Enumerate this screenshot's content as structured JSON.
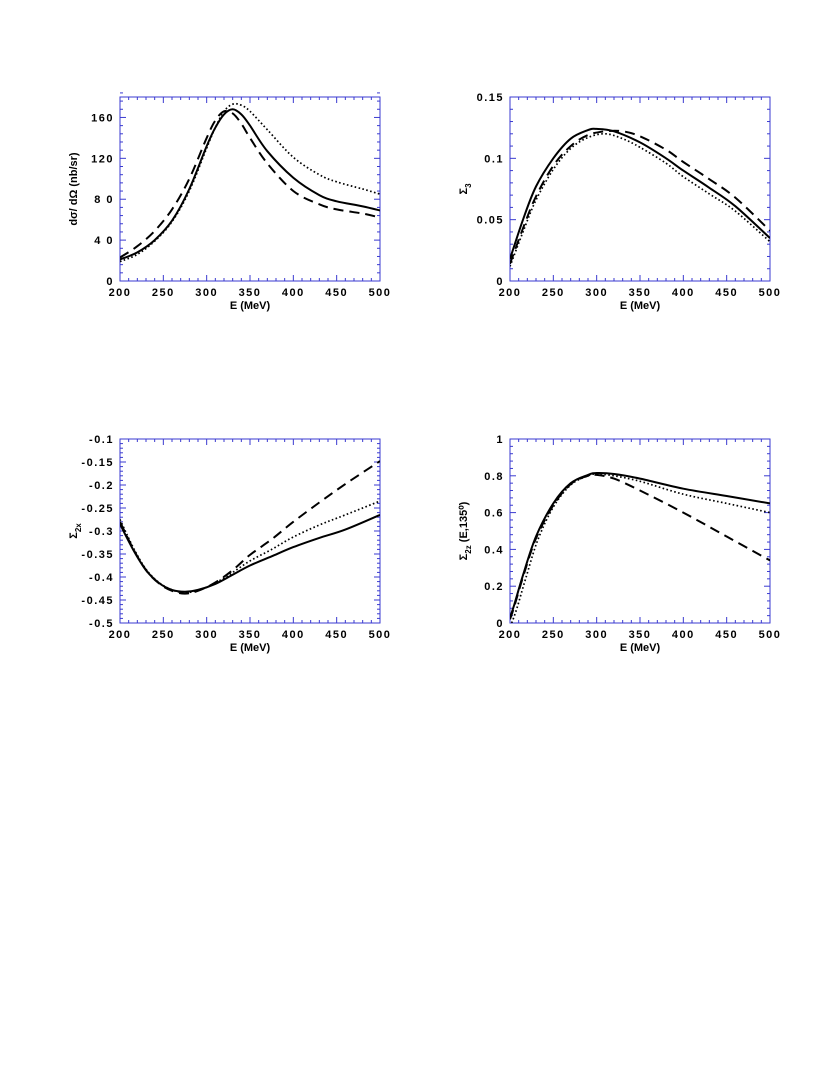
{
  "chart_data": [
    {
      "type": "line",
      "xlabel": "E  (MeV)",
      "ylabel": "dσ/ dΩ  (nb/sr)",
      "xlim": [
        200,
        500
      ],
      "ylim": [
        0,
        180
      ],
      "xticks": [
        "200",
        "250",
        "300",
        "350",
        "400",
        "450",
        "500"
      ],
      "xtick_values": [
        200,
        250,
        300,
        350,
        400,
        450,
        500
      ],
      "yticks": [
        "0",
        "4 0",
        "8 0",
        "120",
        "160"
      ],
      "ytick_values": [
        0,
        40,
        80,
        120,
        160
      ],
      "series": [
        {
          "style": "solid",
          "x": [
            200,
            220,
            240,
            260,
            280,
            300,
            310,
            320,
            330,
            340,
            350,
            370,
            400,
            430,
            450,
            480,
            500
          ],
          "y": [
            21,
            28,
            40,
            59,
            90,
            132,
            150,
            163,
            168,
            163,
            152,
            127,
            101,
            84,
            78,
            73,
            69
          ]
        },
        {
          "style": "dotted",
          "x": [
            200,
            220,
            240,
            260,
            280,
            300,
            310,
            320,
            330,
            340,
            350,
            370,
            400,
            430,
            450,
            480,
            500
          ],
          "y": [
            19,
            26,
            39,
            58,
            88,
            130,
            150,
            166,
            173,
            172,
            166,
            148,
            121,
            104,
            97,
            90,
            85
          ]
        },
        {
          "style": "dashed",
          "x": [
            200,
            220,
            240,
            260,
            280,
            300,
            310,
            320,
            330,
            340,
            350,
            370,
            400,
            430,
            450,
            480,
            500
          ],
          "y": [
            23,
            34,
            49,
            70,
            100,
            140,
            157,
            166,
            164,
            154,
            140,
            115,
            88,
            75,
            70,
            66,
            62
          ]
        }
      ]
    },
    {
      "type": "line",
      "xlabel": "E  (MeV)",
      "ylabel": "Σ",
      "ylabel_sub": "3",
      "xlim": [
        200,
        500
      ],
      "ylim": [
        0,
        0.15
      ],
      "xticks": [
        "200",
        "250",
        "300",
        "350",
        "400",
        "450",
        "500"
      ],
      "xtick_values": [
        200,
        250,
        300,
        350,
        400,
        450,
        500
      ],
      "yticks": [
        "0",
        "0.05",
        "0.1",
        "0.15"
      ],
      "ytick_values": [
        0,
        0.05,
        0.1,
        0.15
      ],
      "series": [
        {
          "style": "solid",
          "x": [
            200,
            215,
            230,
            250,
            270,
            290,
            300,
            320,
            350,
            380,
            400,
            430,
            460,
            500
          ],
          "y": [
            0.018,
            0.05,
            0.077,
            0.1,
            0.116,
            0.123,
            0.124,
            0.122,
            0.113,
            0.1,
            0.09,
            0.076,
            0.061,
            0.035
          ]
        },
        {
          "style": "dotted",
          "x": [
            200,
            215,
            230,
            250,
            270,
            290,
            310,
            330,
            350,
            380,
            400,
            430,
            460,
            500
          ],
          "y": [
            0.012,
            0.04,
            0.066,
            0.091,
            0.108,
            0.117,
            0.12,
            0.116,
            0.109,
            0.096,
            0.085,
            0.071,
            0.057,
            0.032
          ]
        },
        {
          "style": "dashed",
          "x": [
            200,
            215,
            230,
            250,
            270,
            290,
            310,
            330,
            350,
            380,
            400,
            430,
            460,
            500
          ],
          "y": [
            0.014,
            0.043,
            0.069,
            0.094,
            0.11,
            0.119,
            0.122,
            0.122,
            0.118,
            0.107,
            0.097,
            0.083,
            0.068,
            0.041
          ]
        }
      ]
    },
    {
      "type": "line",
      "xlabel": "E  (MeV)",
      "ylabel": "Σ",
      "ylabel_sub": "2x",
      "xlim": [
        200,
        500
      ],
      "ylim": [
        -0.5,
        -0.1
      ],
      "xticks": [
        "200",
        "250",
        "300",
        "350",
        "400",
        "450",
        "500"
      ],
      "xtick_values": [
        200,
        250,
        300,
        350,
        400,
        450,
        500
      ],
      "yticks": [
        "-0.5",
        "-0.45",
        "-0.4",
        "-0.35",
        "-0.3",
        "-0.25",
        "-0.2",
        "-0.15",
        "-0.1"
      ],
      "ytick_values": [
        -0.5,
        -0.45,
        -0.4,
        -0.35,
        -0.3,
        -0.25,
        -0.2,
        -0.15,
        -0.1
      ],
      "series": [
        {
          "style": "solid",
          "x": [
            200,
            215,
            230,
            245,
            260,
            275,
            290,
            310,
            330,
            350,
            375,
            400,
            430,
            460,
            500
          ],
          "y": [
            -0.285,
            -0.34,
            -0.385,
            -0.413,
            -0.428,
            -0.432,
            -0.428,
            -0.415,
            -0.395,
            -0.375,
            -0.355,
            -0.335,
            -0.315,
            -0.297,
            -0.265
          ]
        },
        {
          "style": "dotted",
          "x": [
            200,
            215,
            230,
            245,
            260,
            275,
            290,
            310,
            330,
            350,
            375,
            400,
            430,
            460,
            500
          ],
          "y": [
            -0.275,
            -0.335,
            -0.383,
            -0.412,
            -0.428,
            -0.434,
            -0.429,
            -0.413,
            -0.39,
            -0.365,
            -0.34,
            -0.313,
            -0.287,
            -0.265,
            -0.235
          ]
        },
        {
          "style": "dashed",
          "x": [
            200,
            215,
            230,
            245,
            260,
            275,
            290,
            310,
            330,
            350,
            375,
            400,
            430,
            460,
            500
          ],
          "y": [
            -0.28,
            -0.338,
            -0.385,
            -0.414,
            -0.43,
            -0.436,
            -0.43,
            -0.412,
            -0.385,
            -0.352,
            -0.318,
            -0.28,
            -0.238,
            -0.198,
            -0.148
          ]
        }
      ]
    },
    {
      "type": "line",
      "xlabel": "E  (MeV)",
      "ylabel": "Σ",
      "ylabel_sub": "2z",
      "ylabel_rest": "  (E,135⁰)",
      "xlim": [
        200,
        500
      ],
      "ylim": [
        0,
        1
      ],
      "xticks": [
        "200",
        "250",
        "300",
        "350",
        "400",
        "450",
        "500"
      ],
      "xtick_values": [
        200,
        250,
        300,
        350,
        400,
        450,
        500
      ],
      "yticks": [
        "0",
        "0.2",
        "0.4",
        "0.6",
        "0.8",
        "1"
      ],
      "ytick_values": [
        0,
        0.2,
        0.4,
        0.6,
        0.8,
        1
      ],
      "series": [
        {
          "style": "solid",
          "x": [
            200,
            205,
            215,
            230,
            250,
            270,
            290,
            300,
            320,
            350,
            400,
            450,
            500
          ],
          "y": [
            0.03,
            0.1,
            0.26,
            0.47,
            0.65,
            0.76,
            0.805,
            0.815,
            0.81,
            0.785,
            0.73,
            0.69,
            0.65
          ]
        },
        {
          "style": "dotted",
          "x": [
            202,
            208,
            218,
            232,
            250,
            270,
            290,
            300,
            320,
            350,
            400,
            450,
            500
          ],
          "y": [
            0.0,
            0.08,
            0.24,
            0.45,
            0.63,
            0.75,
            0.8,
            0.81,
            0.8,
            0.77,
            0.7,
            0.65,
            0.6
          ]
        },
        {
          "style": "dashed",
          "x": [
            200,
            205,
            215,
            230,
            250,
            270,
            290,
            300,
            320,
            350,
            400,
            450,
            500
          ],
          "y": [
            0.02,
            0.09,
            0.25,
            0.46,
            0.64,
            0.755,
            0.8,
            0.805,
            0.785,
            0.72,
            0.6,
            0.47,
            0.34
          ]
        }
      ]
    }
  ]
}
